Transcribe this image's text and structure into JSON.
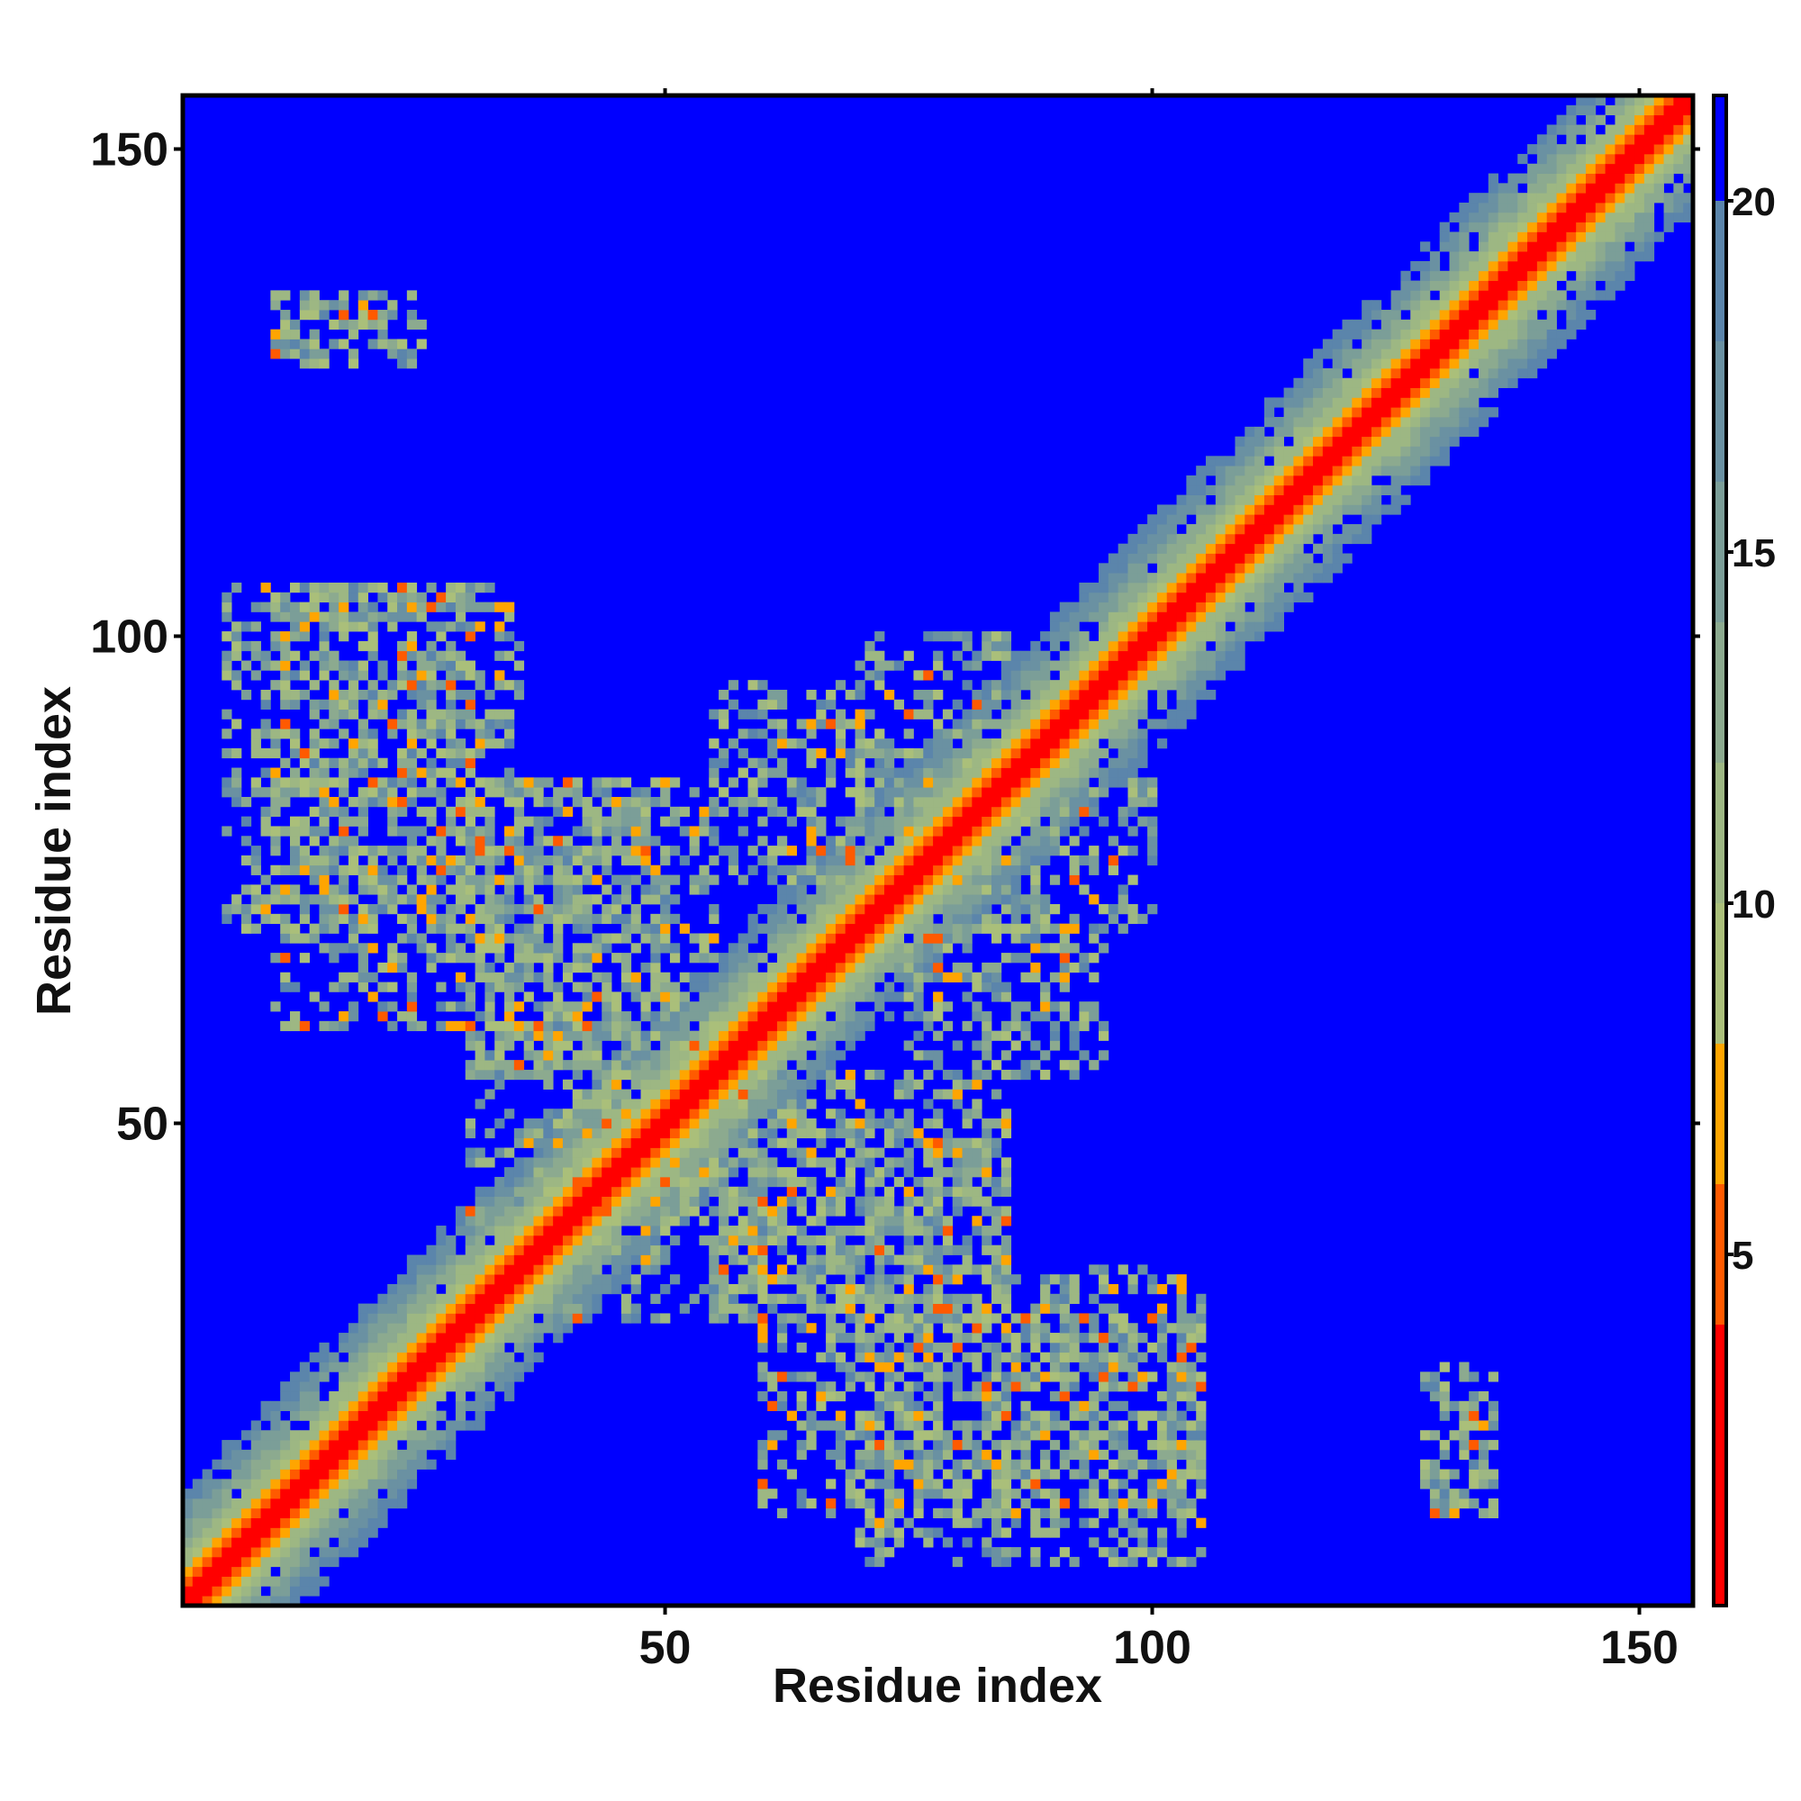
{
  "chart_data": {
    "type": "heatmap",
    "title": "",
    "xlabel": "Residue index",
    "ylabel": "Residue index",
    "xlim": [
      1,
      155
    ],
    "ylim": [
      1,
      155
    ],
    "x_ticks": [
      50,
      100,
      150
    ],
    "y_ticks": [
      50,
      100,
      150
    ],
    "x_tick_labels": [
      "50",
      "100",
      "150"
    ],
    "y_tick_labels": [
      "50",
      "100",
      "150"
    ],
    "grid": false,
    "legend": "colorbar-right",
    "colorbar": {
      "range": [
        0,
        21.5
      ],
      "ticks": [
        5,
        10,
        15,
        20
      ],
      "tick_labels": [
        "5",
        "10",
        "15",
        "20"
      ],
      "bands": [
        {
          "from": 0,
          "to": 4,
          "color": "#ff0000"
        },
        {
          "from": 4,
          "to": 6,
          "color": "#ff5a00"
        },
        {
          "from": 6,
          "to": 8,
          "color": "#ffa500"
        },
        {
          "from": 8,
          "to": 10,
          "color": "#aabf7a"
        },
        {
          "from": 10,
          "to": 12,
          "color": "#9db783"
        },
        {
          "from": 12,
          "to": 14,
          "color": "#8caa8f"
        },
        {
          "from": 14,
          "to": 16,
          "color": "#7b9e98"
        },
        {
          "from": 16,
          "to": 18,
          "color": "#6a91a2"
        },
        {
          "from": 18,
          "to": 20,
          "color": "#5b85ab"
        },
        {
          "from": 20,
          "to": 21.5,
          "color": "#0000ff"
        }
      ]
    },
    "background_color": "#0000ff",
    "diagonal": {
      "from": 1,
      "to": 155
    },
    "contact_regions": [
      {
        "x_range": [
          1,
          155
        ],
        "y_range": [
          1,
          155
        ],
        "type": "diagonal-band",
        "half_width": 10
      },
      {
        "x_range": [
          5,
          30
        ],
        "y_range": [
          70,
          105
        ],
        "type": "scattered-contacts"
      },
      {
        "x_range": [
          30,
          55
        ],
        "y_range": [
          55,
          85
        ],
        "type": "scattered-contacts"
      },
      {
        "x_range": [
          55,
          70
        ],
        "y_range": [
          75,
          95
        ],
        "type": "scattered-contacts"
      },
      {
        "x_range": [
          70,
          85
        ],
        "y_range": [
          80,
          100
        ],
        "type": "scattered-contacts"
      },
      {
        "x_range": [
          40,
          60
        ],
        "y_range": [
          30,
          55
        ],
        "type": "scattered-contacts"
      },
      {
        "x_range": [
          60,
          85
        ],
        "y_range": [
          10,
          50
        ],
        "type": "scattered-contacts"
      },
      {
        "x_range": [
          85,
          105
        ],
        "y_range": [
          10,
          35
        ],
        "type": "scattered-contacts"
      },
      {
        "x_range": [
          10,
          25
        ],
        "y_range": [
          130,
          135
        ],
        "type": "scattered-contacts"
      },
      {
        "x_range": [
          128,
          135
        ],
        "y_range": [
          10,
          25
        ],
        "type": "scattered-contacts"
      }
    ]
  }
}
